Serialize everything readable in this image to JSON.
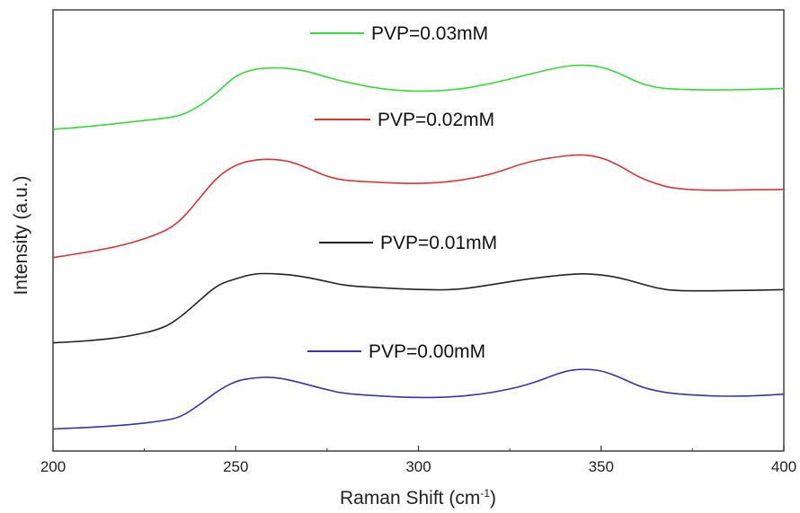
{
  "chart_data": {
    "type": "line",
    "xlabel": "Raman Shift (cm",
    "xlabel_sup": "-1",
    "xlabel_suffix": ")",
    "ylabel": "Intensity (a.u.)",
    "xlim": [
      200,
      400
    ],
    "ylim": [
      0,
      1
    ],
    "x_ticks": [
      "200",
      "250",
      "300",
      "350",
      "400"
    ],
    "y_ticks_labeled": false,
    "grid": false,
    "legend_placement": "inline labels above each curve",
    "series": [
      {
        "name": "PVP=0.03mM",
        "color": "#33dd33",
        "x": [
          200,
          210,
          220,
          230,
          235,
          240,
          245,
          250,
          255,
          260,
          265,
          270,
          275,
          280,
          290,
          300,
          310,
          320,
          330,
          340,
          345,
          350,
          355,
          360,
          365,
          370,
          380,
          390,
          400
        ],
        "y": [
          0.758,
          0.765,
          0.775,
          0.785,
          0.792,
          0.815,
          0.85,
          0.893,
          0.908,
          0.912,
          0.91,
          0.902,
          0.888,
          0.876,
          0.858,
          0.852,
          0.856,
          0.872,
          0.895,
          0.916,
          0.919,
          0.914,
          0.898,
          0.875,
          0.862,
          0.858,
          0.856,
          0.857,
          0.86
        ]
      },
      {
        "name": "PVP=0.02mM",
        "color": "#dd3333",
        "x": [
          200,
          210,
          220,
          230,
          235,
          240,
          245,
          250,
          255,
          260,
          265,
          270,
          275,
          280,
          290,
          300,
          310,
          320,
          330,
          340,
          345,
          350,
          355,
          360,
          365,
          370,
          380,
          390,
          400
        ],
        "y": [
          0.438,
          0.452,
          0.47,
          0.5,
          0.53,
          0.585,
          0.64,
          0.67,
          0.682,
          0.684,
          0.678,
          0.66,
          0.64,
          0.63,
          0.625,
          0.622,
          0.628,
          0.645,
          0.678,
          0.692,
          0.695,
          0.688,
          0.668,
          0.64,
          0.622,
          0.61,
          0.605,
          0.607,
          0.608
        ]
      },
      {
        "name": "PVP=0.01mM",
        "color": "#222222",
        "x": [
          200,
          210,
          220,
          230,
          235,
          240,
          245,
          250,
          255,
          260,
          265,
          270,
          275,
          280,
          290,
          300,
          310,
          320,
          330,
          340,
          345,
          350,
          355,
          360,
          365,
          370,
          380,
          390,
          400
        ],
        "y": [
          0.225,
          0.23,
          0.24,
          0.26,
          0.29,
          0.33,
          0.37,
          0.385,
          0.398,
          0.398,
          0.395,
          0.388,
          0.378,
          0.368,
          0.362,
          0.358,
          0.357,
          0.37,
          0.385,
          0.395,
          0.398,
          0.395,
          0.388,
          0.375,
          0.362,
          0.355,
          0.355,
          0.356,
          0.358
        ]
      },
      {
        "name": "PVP=0.00mM",
        "color": "#3333bb",
        "x": [
          200,
          210,
          220,
          230,
          235,
          240,
          245,
          250,
          255,
          260,
          265,
          270,
          275,
          280,
          290,
          300,
          310,
          320,
          330,
          340,
          345,
          350,
          355,
          360,
          365,
          370,
          380,
          390,
          400
        ],
        "y": [
          0.01,
          0.014,
          0.02,
          0.03,
          0.04,
          0.07,
          0.105,
          0.13,
          0.138,
          0.14,
          0.132,
          0.12,
          0.108,
          0.098,
          0.092,
          0.088,
          0.09,
          0.1,
          0.12,
          0.155,
          0.16,
          0.156,
          0.14,
          0.118,
          0.105,
          0.098,
          0.092,
          0.092,
          0.097
        ]
      }
    ]
  }
}
